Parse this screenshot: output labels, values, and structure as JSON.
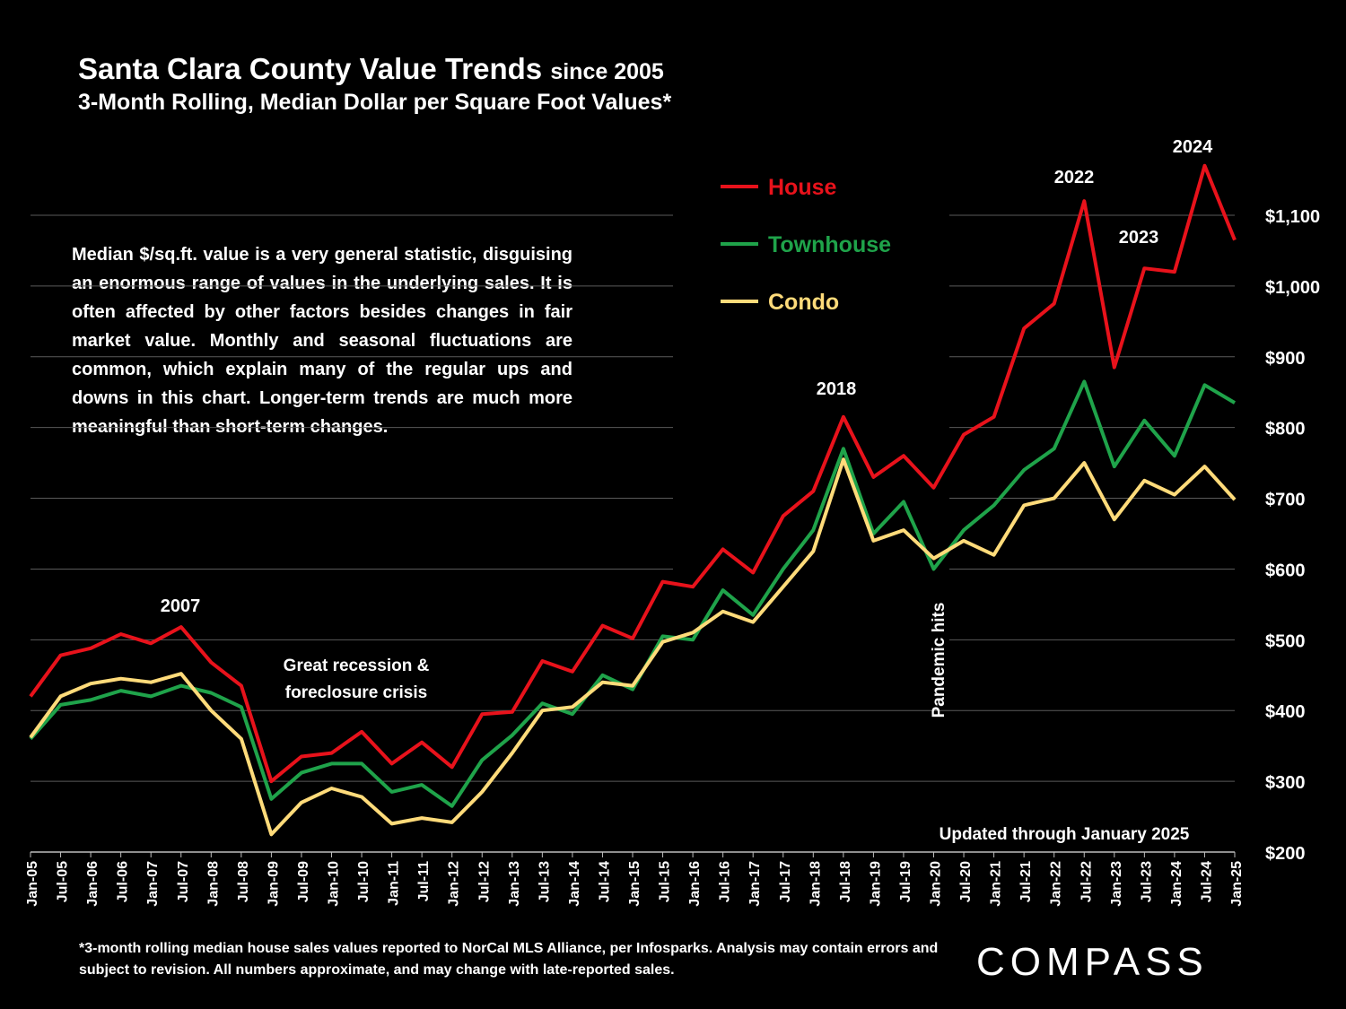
{
  "title": "Santa Clara County Value Trends",
  "title_suffix": "since 2005",
  "subtitle": "3-Month Rolling, Median Dollar per Square Foot Values*",
  "note": "Median $/sq.ft. value is a very general statistic, disguising an enormous range of values in the underlying sales. It is often affected by other factors besides changes in fair market value. Monthly and seasonal fluctuations are common, which explain many of the regular ups and downs in this chart. Longer-term trends are much more meaningful than short-term changes.",
  "footnote": "*3-month rolling median house sales values reported to NorCal MLS Alliance, per Infosparks. Analysis may contain errors and subject to revision. All numbers approximate, and may change with late-reported sales.",
  "logo": "COMPASS",
  "colors": {
    "house": "#e8121b",
    "townhouse": "#1fa34a",
    "condo": "#ffdb7a",
    "grid": "#5a5a5a"
  },
  "chart_data": {
    "type": "line",
    "x": [
      "Jan-05",
      "Jul-05",
      "Jan-06",
      "Jul-06",
      "Jan-07",
      "Jul-07",
      "Jan-08",
      "Jul-08",
      "Jan-09",
      "Jul-09",
      "Jan-10",
      "Jul-10",
      "Jan-11",
      "Jul-11",
      "Jan-12",
      "Jul-12",
      "Jan-13",
      "Jul-13",
      "Jan-14",
      "Jul-14",
      "Jan-15",
      "Jul-15",
      "Jan-16",
      "Jul-16",
      "Jan-17",
      "Jul-17",
      "Jan-18",
      "Jul-18",
      "Jan-19",
      "Jul-19",
      "Jan-20",
      "Jul-20",
      "Jan-21",
      "Jul-21",
      "Jan-22",
      "Jul-22",
      "Jan-23",
      "Jul-23",
      "Jan-24",
      "Jul-24",
      "Jan-25"
    ],
    "ylim": [
      200,
      1100
    ],
    "yticks": [
      "$200",
      "$300",
      "$400",
      "$500",
      "$600",
      "$700",
      "$800",
      "$900",
      "$1,000",
      "$1,100"
    ],
    "series": [
      {
        "name": "House",
        "values": [
          420,
          478,
          488,
          508,
          495,
          518,
          468,
          435,
          300,
          335,
          340,
          370,
          325,
          355,
          320,
          395,
          398,
          470,
          455,
          520,
          502,
          582,
          575,
          628,
          595,
          675,
          710,
          815,
          730,
          760,
          715,
          790,
          815,
          940,
          975,
          1120,
          885,
          1025,
          1020,
          1170,
          1065
        ]
      },
      {
        "name": "Townhouse",
        "values": [
          360,
          408,
          415,
          428,
          420,
          435,
          425,
          405,
          275,
          312,
          325,
          325,
          285,
          295,
          265,
          330,
          365,
          410,
          395,
          450,
          430,
          505,
          500,
          570,
          535,
          600,
          655,
          770,
          650,
          695,
          600,
          655,
          690,
          740,
          770,
          865,
          745,
          810,
          760,
          860,
          835
        ]
      },
      {
        "name": "Condo",
        "values": [
          362,
          420,
          438,
          445,
          440,
          452,
          400,
          360,
          225,
          270,
          290,
          278,
          240,
          248,
          242,
          285,
          340,
          400,
          405,
          440,
          435,
          497,
          510,
          540,
          525,
          575,
          625,
          755,
          640,
          655,
          615,
          640,
          620,
          690,
          700,
          750,
          670,
          725,
          705,
          745,
          698
        ]
      }
    ],
    "annotations": {
      "y2007": "2007",
      "recession": [
        "Great recession &",
        "foreclosure crisis"
      ],
      "y2018": "2018",
      "pandemic": "Pandemic hits",
      "y2022": "2022",
      "y2023": "2023",
      "y2024": "2024",
      "updated": "Updated through January 2025"
    }
  }
}
